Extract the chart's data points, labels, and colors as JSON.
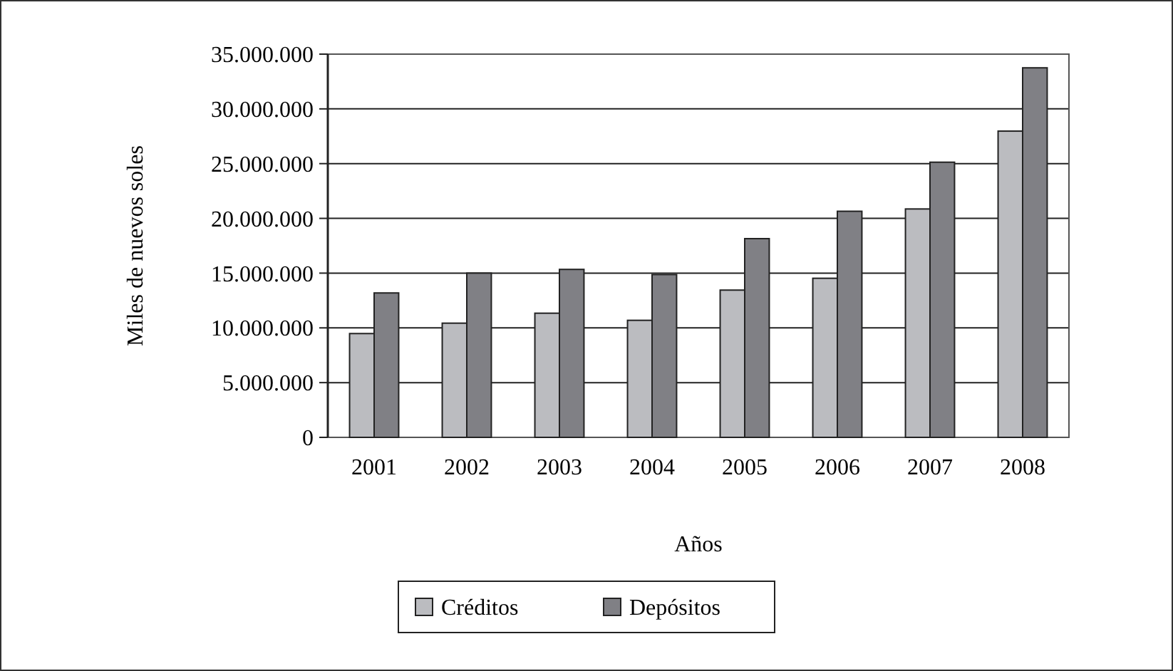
{
  "chart_data": {
    "type": "bar",
    "xlabel": "Años",
    "ylabel": "Miles de nuevos soles",
    "categories": [
      "2001",
      "2002",
      "2003",
      "2004",
      "2005",
      "2006",
      "2007",
      "2008"
    ],
    "series": [
      {
        "name": "Créditos",
        "color": "#bbbcc0",
        "values": [
          9480000.0,
          10430000.0,
          11340000.0,
          10690000.0,
          13450000.0,
          14530000.0,
          20860000.0,
          27970000.0
        ]
      },
      {
        "name": "Depósitos",
        "color": "#808085",
        "values": [
          13190000.0,
          15000000.0,
          15340000.0,
          14870000.0,
          18150000.0,
          20650000.0,
          25130000.0,
          33750000.0
        ]
      }
    ],
    "ylim": [
      0,
      35000000
    ],
    "yticks": [
      {
        "value": 0,
        "label": "0"
      },
      {
        "value": 5000000,
        "label": "5.000.000"
      },
      {
        "value": 10000000,
        "label": "10.000.000"
      },
      {
        "value": 15000000,
        "label": "15.000.000"
      },
      {
        "value": 20000000,
        "label": "20.000.000"
      },
      {
        "value": 25000000,
        "label": "25.000.000"
      },
      {
        "value": 30000000,
        "label": "30.000.000"
      },
      {
        "value": 35000000,
        "label": "35.000.000"
      }
    ],
    "grid": "y",
    "legend": "bottom"
  }
}
